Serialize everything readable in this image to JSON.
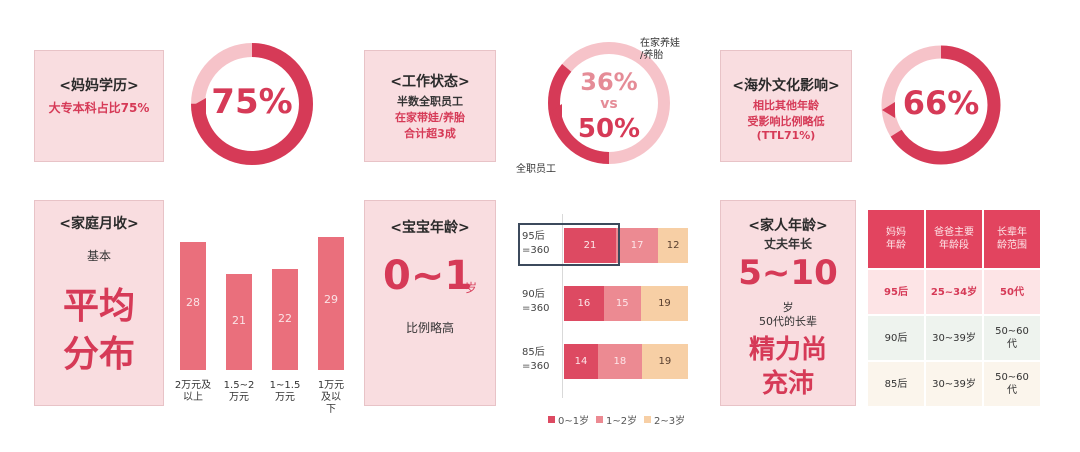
{
  "colors": {
    "accent": "#d63a57",
    "card_bg": "#f9dde0",
    "bar": "#ea6f7c",
    "seg1": "#dd4a62",
    "seg2": "#ec8a92",
    "seg3": "#f7cfa5"
  },
  "mom_edu": {
    "title": "<妈妈学历>",
    "subtitle": "大专本科占比75%",
    "ring_value": "75%",
    "ring_fraction": 0.75
  },
  "work": {
    "title": "<工作状态>",
    "line1": "半数全职员工",
    "line2": "在家带娃/养胎",
    "line3": "合计超3成",
    "value_top": "36%",
    "vs": "vs",
    "value_bottom": "50%",
    "label_top": "在家养娃\n/养胎",
    "label_bottom": "全职员工",
    "ring_fraction": 0.36
  },
  "overseas": {
    "title": "<海外文化影响>",
    "line1": "相比其他年龄",
    "line2": "受影响比例略低",
    "line3": "(TTL71%)",
    "ring_value": "66%",
    "ring_fraction": 0.66
  },
  "income": {
    "title": "<家庭月收>",
    "line1": "基本",
    "big_line1": "平均",
    "big_line2": "分布"
  },
  "baby_age": {
    "title": "<宝宝年龄>",
    "big": "0~1",
    "unit": "岁",
    "note": "比例略高"
  },
  "family_age": {
    "title": "<家人年龄>",
    "line1": "丈夫年长",
    "big": "5~10",
    "unit": "岁",
    "line2": "50代的长辈",
    "big2_line1": "精力尚",
    "big2_line2": "充沛"
  },
  "chart_data": [
    {
      "type": "bar",
      "categories": [
        "2万元及以上",
        "1.5-2万元",
        "1-1.5万元",
        "1万元及以下"
      ],
      "category_lines": [
        [
          "2万元及",
          "以上"
        ],
        [
          "1.5~2",
          "万元"
        ],
        [
          "1~1.5",
          "万元"
        ],
        [
          "1万元",
          "及以",
          "下"
        ]
      ],
      "values": [
        28,
        21,
        22,
        29
      ],
      "ylim": [
        0,
        30
      ]
    },
    {
      "type": "bar",
      "orientation": "horizontal",
      "stacked": true,
      "categories": [
        [
          "95后",
          "=360"
        ],
        [
          "90后",
          "=360"
        ],
        [
          "85后",
          "=360"
        ]
      ],
      "series": [
        {
          "name": "0~1岁",
          "values": [
            21,
            16,
            14
          ]
        },
        {
          "name": "1~2岁",
          "values": [
            17,
            15,
            18
          ]
        },
        {
          "name": "2~3岁",
          "values": [
            12,
            19,
            19
          ]
        }
      ],
      "legend": "bottom",
      "highlight": "95后 0~1岁"
    },
    {
      "type": "table",
      "headers": [
        "妈妈\n年龄",
        "爸爸主要\n年龄段",
        "长辈年\n龄范围"
      ],
      "rows": [
        [
          "95后",
          "25~34岁",
          "50代"
        ],
        [
          "90后",
          "30~39岁",
          "50~60\n代"
        ],
        [
          "85后",
          "30~39岁",
          "50~60\n代"
        ]
      ]
    }
  ]
}
